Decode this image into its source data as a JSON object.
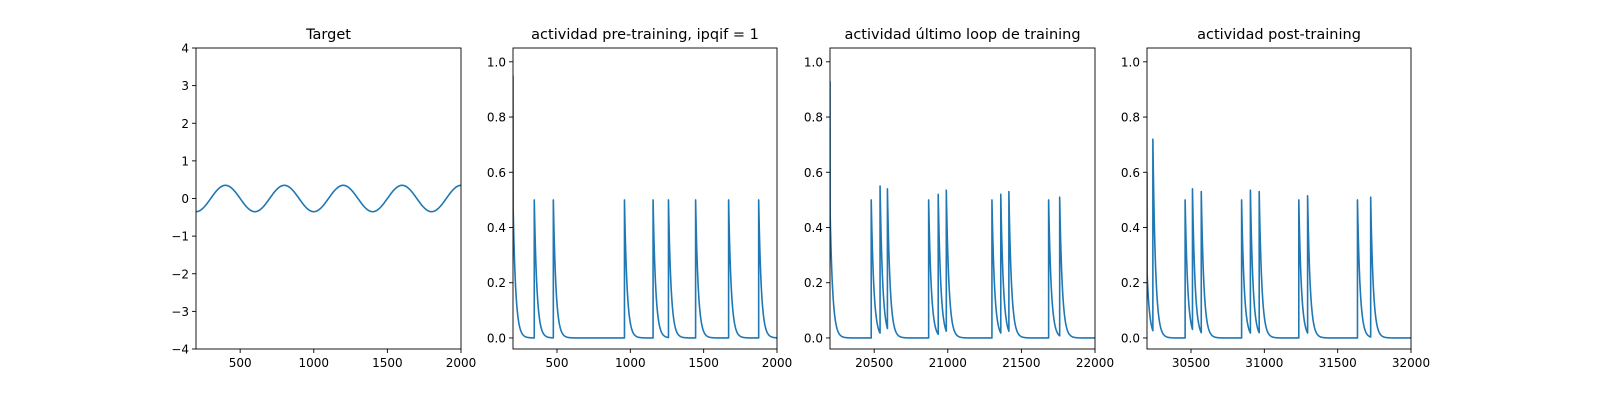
{
  "figure": {
    "background": "#ffffff",
    "line_color": "#1f77b4"
  },
  "chart_data": [
    {
      "type": "line",
      "title": "Target",
      "xlabel": "",
      "ylabel": "",
      "xlim": [
        200,
        2000
      ],
      "ylim": [
        -4,
        4
      ],
      "xticks": [
        500,
        1000,
        1500,
        2000
      ],
      "yticks": [
        -4,
        -3,
        -2,
        -1,
        0,
        1,
        2,
        3,
        4
      ],
      "grid": false,
      "legend": "none",
      "series": [
        {
          "kind": "sine",
          "x_start": 200,
          "x_end": 2000,
          "amplitude": 0.35,
          "period": 400,
          "phase_x0": 300
        }
      ]
    },
    {
      "type": "line",
      "title": "actividad pre-training, ipqif = 1",
      "xlabel": "",
      "ylabel": "",
      "xlim": [
        200,
        2000
      ],
      "ylim": [
        -0.04,
        1.05
      ],
      "xticks": [
        500,
        1000,
        1500,
        2000
      ],
      "yticks": [
        0.0,
        0.2,
        0.4,
        0.6,
        0.8,
        1.0
      ],
      "grid": false,
      "legend": "none",
      "series": [
        {
          "kind": "spikes",
          "x_start": 200,
          "x_end": 2000,
          "decay": 18,
          "initial": 0.95,
          "initial_tail_start": 0.47,
          "spike_x": [
            345,
            475,
            960,
            1155,
            1260,
            1445,
            1670,
            1875
          ],
          "spike_peak": [
            0.5,
            0.5,
            0.5,
            0.5,
            0.5,
            0.5,
            0.5,
            0.5
          ]
        }
      ]
    },
    {
      "type": "line",
      "title": "actividad último loop de training",
      "xlabel": "",
      "ylabel": "",
      "xlim": [
        20200,
        22000
      ],
      "ylim": [
        -0.04,
        1.05
      ],
      "xticks": [
        20500,
        21000,
        21500,
        22000
      ],
      "yticks": [
        0.0,
        0.2,
        0.4,
        0.6,
        0.8,
        1.0
      ],
      "grid": false,
      "legend": "none",
      "series": [
        {
          "kind": "spikes",
          "x_start": 20200,
          "x_end": 22000,
          "decay": 18,
          "initial": 0.93,
          "initial_tail_start": 0.45,
          "spike_x": [
            20480,
            20540,
            20590,
            20870,
            20935,
            20990,
            21300,
            21360,
            21415,
            21685,
            21760
          ],
          "spike_peak": [
            0.5,
            0.55,
            0.54,
            0.5,
            0.52,
            0.535,
            0.5,
            0.52,
            0.53,
            0.5,
            0.51
          ]
        }
      ]
    },
    {
      "type": "line",
      "title": "actividad post-training",
      "xlabel": "",
      "ylabel": "",
      "xlim": [
        30200,
        32000
      ],
      "ylim": [
        -0.04,
        1.05
      ],
      "xticks": [
        30500,
        31000,
        31500,
        32000
      ],
      "yticks": [
        0.0,
        0.2,
        0.4,
        0.6,
        0.8,
        1.0
      ],
      "grid": false,
      "legend": "none",
      "series": [
        {
          "kind": "spikes",
          "x_start": 30200,
          "x_end": 32000,
          "decay": 18,
          "initial": 0.6,
          "initial_tail_start": 0.23,
          "spike_x": [
            30240,
            30460,
            30510,
            30570,
            30845,
            30905,
            30965,
            31235,
            31295,
            31635,
            31725
          ],
          "spike_peak": [
            0.72,
            0.5,
            0.54,
            0.53,
            0.5,
            0.535,
            0.53,
            0.5,
            0.515,
            0.5,
            0.51
          ]
        }
      ]
    }
  ]
}
